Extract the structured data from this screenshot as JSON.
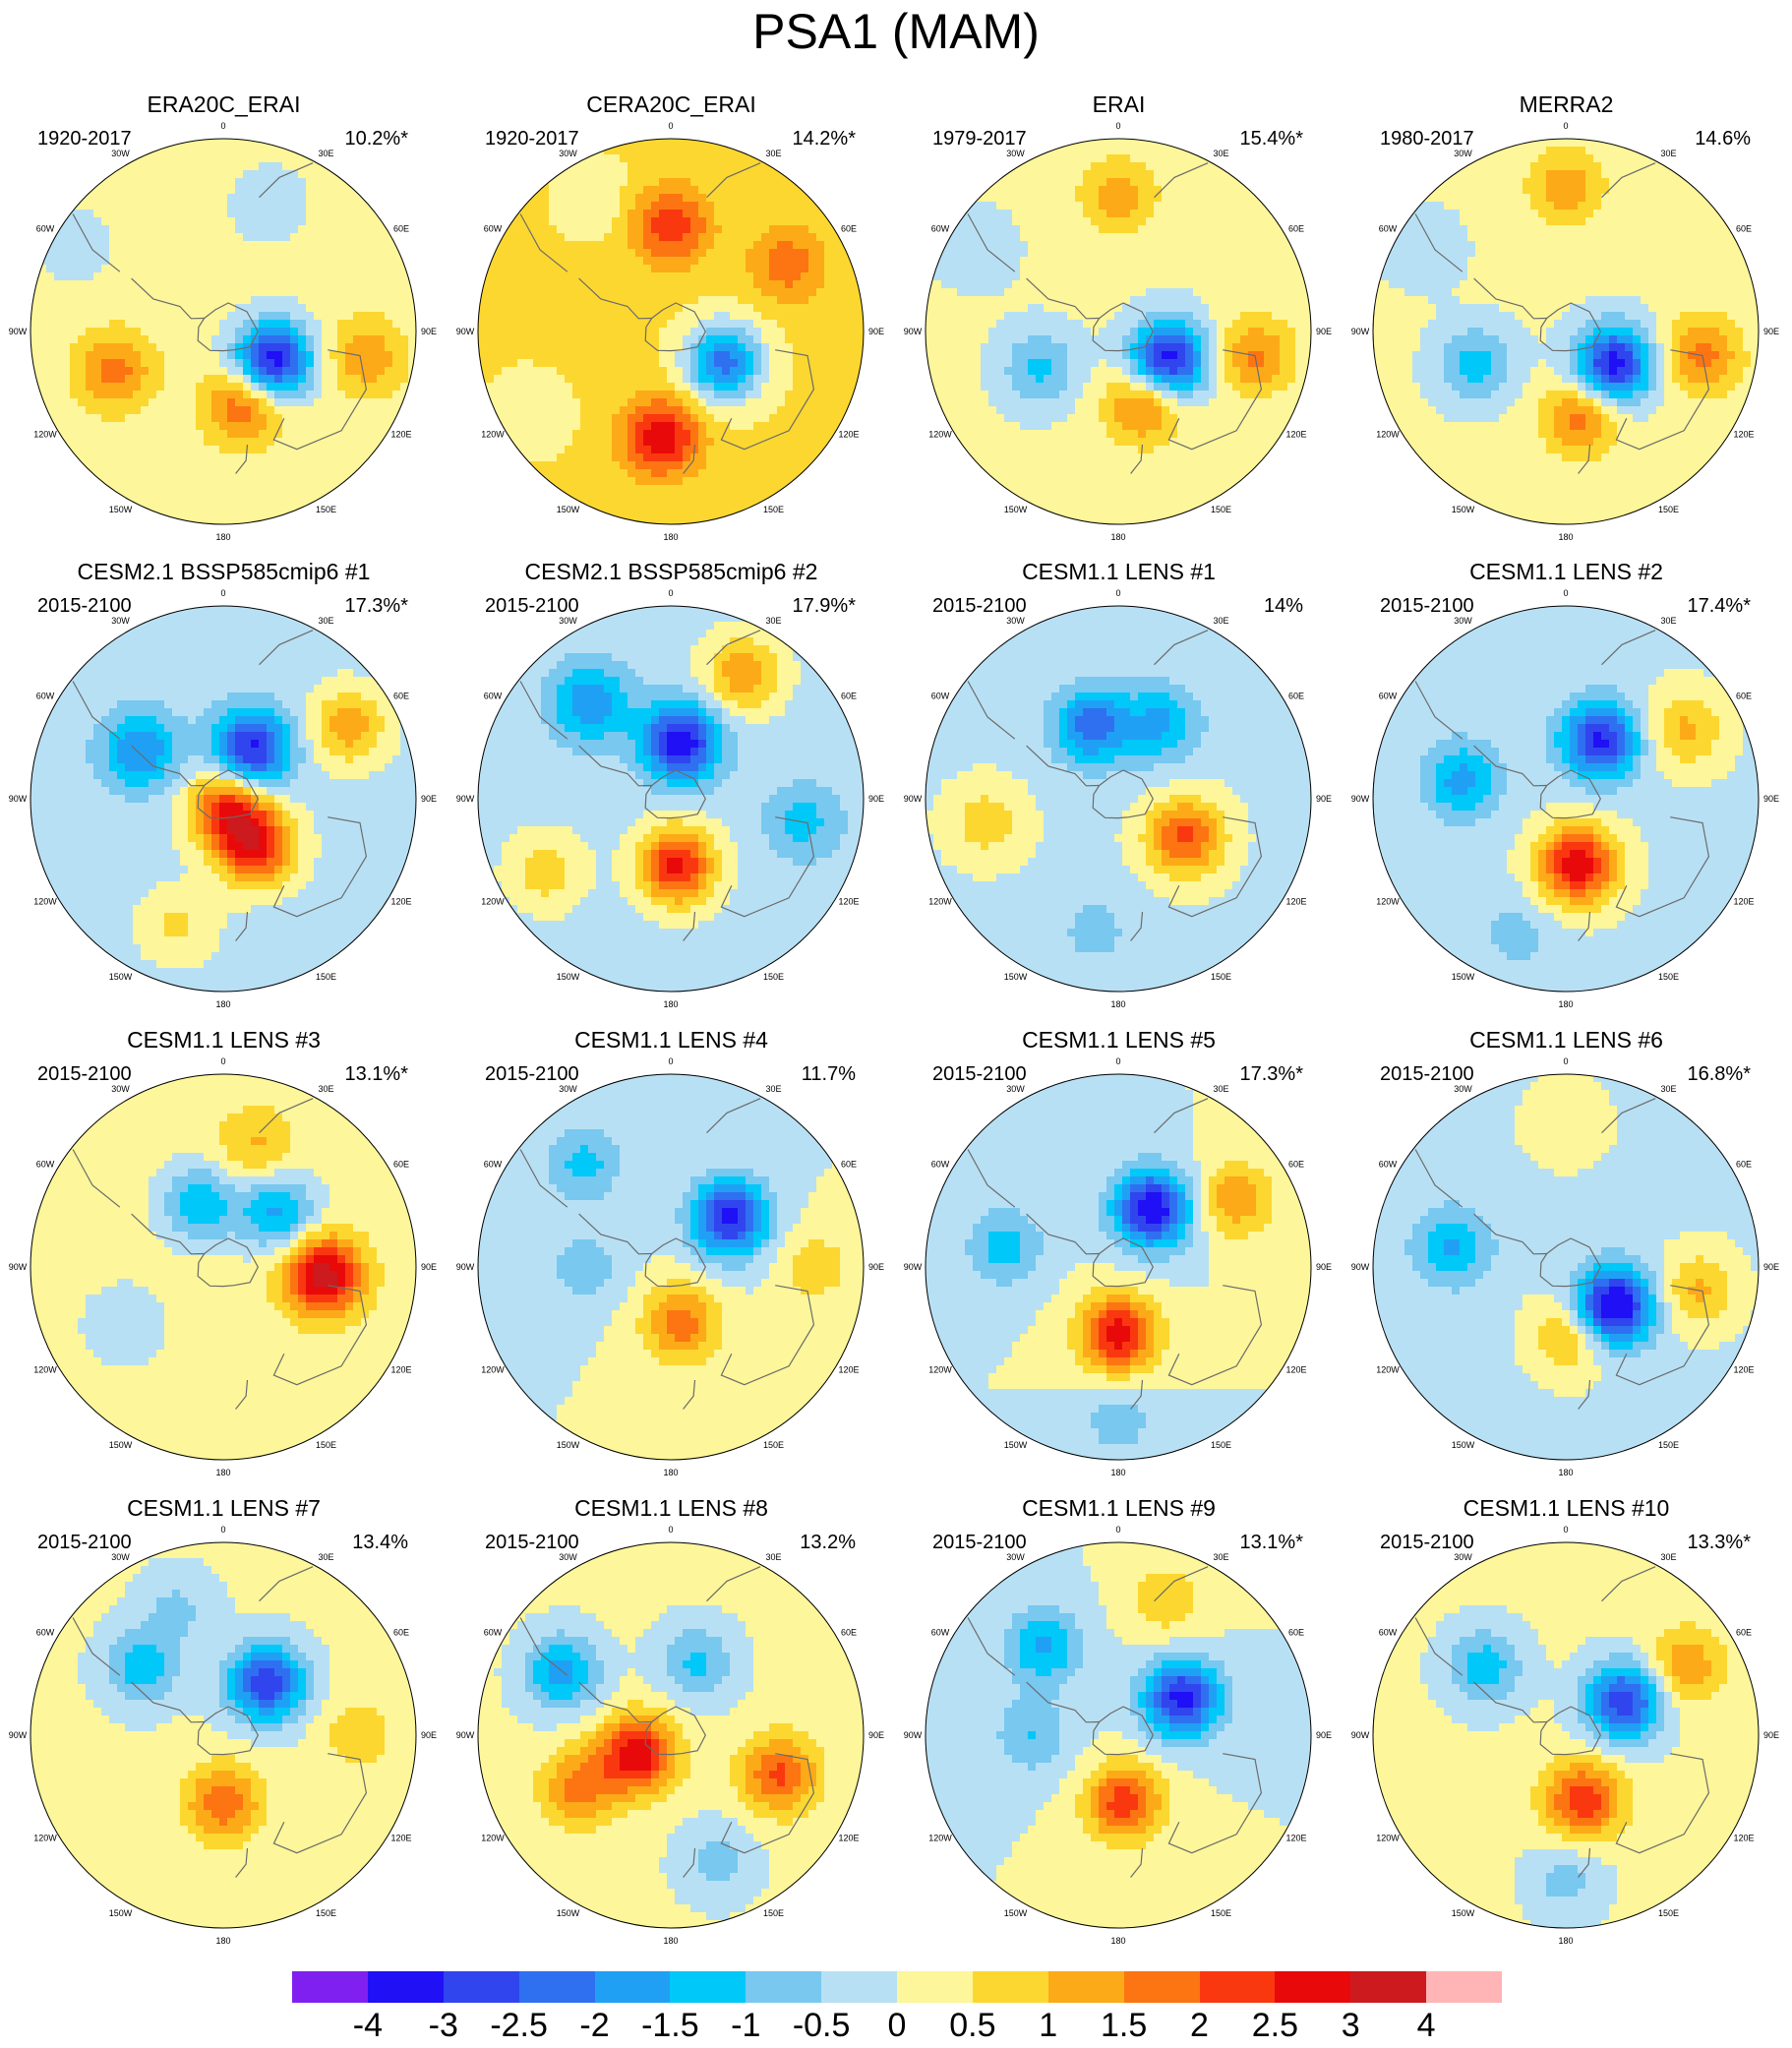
{
  "figure_title": "PSA1 (MAM)",
  "lon_labels": [
    "0",
    "30E",
    "60E",
    "90E",
    "120E",
    "150E",
    "180",
    "150W",
    "120W",
    "90W",
    "60W",
    "30W"
  ],
  "colorbar": {
    "colors": [
      "#8020f0",
      "#1f10f5",
      "#3045ee",
      "#2f70f0",
      "#20a0f5",
      "#00c8f8",
      "#78c8f0",
      "#b8e0f4",
      "#fdf69a",
      "#fcd730",
      "#fdaa18",
      "#fc7512",
      "#fa3810",
      "#e80a0a",
      "#cc1a1e",
      "#ffb5b5"
    ],
    "labels": [
      "-4",
      "-3",
      "-2.5",
      "-2",
      "-1.5",
      "-1",
      "-0.5",
      "0",
      "0.5",
      "1",
      "1.5",
      "2",
      "2.5",
      "3",
      "4"
    ]
  },
  "panels": [
    {
      "title": "ERA20C_ERAI",
      "period": "1920-2017",
      "variance": "10.2%*"
    },
    {
      "title": "CERA20C_ERAI",
      "period": "1920-2017",
      "variance": "14.2%*"
    },
    {
      "title": "ERAI",
      "period": "1979-2017",
      "variance": "15.4%*"
    },
    {
      "title": "MERRA2",
      "period": "1980-2017",
      "variance": "14.6%"
    },
    {
      "title": "CESM2.1 BSSP585cmip6 #1",
      "period": "2015-2100",
      "variance": "17.3%*"
    },
    {
      "title": "CESM2.1 BSSP585cmip6 #2",
      "period": "2015-2100",
      "variance": "17.9%*"
    },
    {
      "title": "CESM1.1 LENS #1",
      "period": "2015-2100",
      "variance": "14%"
    },
    {
      "title": "CESM1.1 LENS #2",
      "period": "2015-2100",
      "variance": "17.4%*"
    },
    {
      "title": "CESM1.1 LENS #3",
      "period": "2015-2100",
      "variance": "13.1%*"
    },
    {
      "title": "CESM1.1 LENS #4",
      "period": "2015-2100",
      "variance": "11.7%"
    },
    {
      "title": "CESM1.1 LENS #5",
      "period": "2015-2100",
      "variance": "17.3%*"
    },
    {
      "title": "CESM1.1 LENS #6",
      "period": "2015-2100",
      "variance": "16.8%*"
    },
    {
      "title": "CESM1.1 LENS #7",
      "period": "2015-2100",
      "variance": "13.4%"
    },
    {
      "title": "CESM1.1 LENS #8",
      "period": "2015-2100",
      "variance": "13.2%"
    },
    {
      "title": "CESM1.1 LENS #9",
      "period": "2015-2100",
      "variance": "13.1%*"
    },
    {
      "title": "CESM1.1 LENS #10",
      "period": "2015-2100",
      "variance": "13.3%*"
    }
  ],
  "chart_data": {
    "type": "heatmap",
    "title": "PSA1 (MAM)",
    "projection": "south polar stereographic",
    "colorbar_levels": [
      -4,
      -3,
      -2.5,
      -2,
      -1.5,
      -1,
      -0.5,
      0,
      0.5,
      1,
      1.5,
      2,
      2.5,
      3,
      4
    ],
    "fields": [
      {
        "background": 0.2,
        "blobs": [
          {
            "lon": 120,
            "r": 0.3,
            "v": -3.5
          },
          {
            "lon": 165,
            "r": 0.4,
            "v": 1.8
          },
          {
            "lon": 250,
            "r": 0.6,
            "v": 1.5
          },
          {
            "lon": 100,
            "r": 0.75,
            "v": 1.2
          },
          {
            "lon": 300,
            "r": 0.9,
            "v": -0.5
          },
          {
            "lon": 20,
            "r": 0.7,
            "v": -0.6
          }
        ]
      },
      {
        "background": 0.6,
        "blobs": [
          {
            "lon": 120,
            "r": 0.32,
            "v": -2.8
          },
          {
            "lon": 185,
            "r": 0.55,
            "v": 2.3
          },
          {
            "lon": 0,
            "r": 0.55,
            "v": 1.8
          },
          {
            "lon": 60,
            "r": 0.7,
            "v": 1.2
          },
          {
            "lon": 240,
            "r": 0.85,
            "v": -0.6
          },
          {
            "lon": 330,
            "r": 0.8,
            "v": -0.5
          }
        ]
      },
      {
        "background": 0.1,
        "blobs": [
          {
            "lon": 120,
            "r": 0.3,
            "v": -3.5
          },
          {
            "lon": 160,
            "r": 0.4,
            "v": 1.8
          },
          {
            "lon": 245,
            "r": 0.45,
            "v": -1.2
          },
          {
            "lon": 100,
            "r": 0.72,
            "v": 1.5
          },
          {
            "lon": 0,
            "r": 0.7,
            "v": 1.2
          },
          {
            "lon": 300,
            "r": 0.85,
            "v": -0.5
          }
        ]
      },
      {
        "background": 0.1,
        "blobs": [
          {
            "lon": 125,
            "r": 0.3,
            "v": -3.4
          },
          {
            "lon": 170,
            "r": 0.45,
            "v": 1.7
          },
          {
            "lon": 250,
            "r": 0.5,
            "v": -1.3
          },
          {
            "lon": 100,
            "r": 0.72,
            "v": 1.6
          },
          {
            "lon": 0,
            "r": 0.75,
            "v": 1.2
          },
          {
            "lon": 300,
            "r": 0.85,
            "v": -0.5
          }
        ]
      },
      {
        "background": -0.2,
        "blobs": [
          {
            "lon": 145,
            "r": 0.3,
            "v": 2.8
          },
          {
            "lon": 160,
            "r": 0.05,
            "v": 2.5
          },
          {
            "lon": 30,
            "r": 0.3,
            "v": -3.0
          },
          {
            "lon": 300,
            "r": 0.5,
            "v": -1.8
          },
          {
            "lon": 60,
            "r": 0.75,
            "v": 1.5
          },
          {
            "lon": 200,
            "r": 0.7,
            "v": 0.8
          }
        ]
      },
      {
        "background": -0.2,
        "blobs": [
          {
            "lon": 175,
            "r": 0.35,
            "v": 2.8
          },
          {
            "lon": 10,
            "r": 0.3,
            "v": -3.2
          },
          {
            "lon": 320,
            "r": 0.65,
            "v": -1.8
          },
          {
            "lon": 100,
            "r": 0.7,
            "v": -1.0
          },
          {
            "lon": 30,
            "r": 0.75,
            "v": 1.6
          },
          {
            "lon": 240,
            "r": 0.75,
            "v": 1.0
          }
        ]
      },
      {
        "background": -0.1,
        "blobs": [
          {
            "lon": 120,
            "r": 0.4,
            "v": 2.2
          },
          {
            "lon": 340,
            "r": 0.4,
            "v": -2.2
          },
          {
            "lon": 30,
            "r": 0.45,
            "v": -1.5
          },
          {
            "lon": 260,
            "r": 0.7,
            "v": 0.9
          },
          {
            "lon": 190,
            "r": 0.7,
            "v": -0.6
          }
        ]
      },
      {
        "background": -0.1,
        "blobs": [
          {
            "lon": 170,
            "r": 0.35,
            "v": 3.0
          },
          {
            "lon": 30,
            "r": 0.35,
            "v": -3.0
          },
          {
            "lon": 280,
            "r": 0.55,
            "v": -1.6
          },
          {
            "lon": 60,
            "r": 0.72,
            "v": 1.2
          },
          {
            "lon": 200,
            "r": 0.75,
            "v": -0.6
          }
        ]
      },
      {
        "background": 0.2,
        "blobs": [
          {
            "lon": 95,
            "r": 0.52,
            "v": 3.2
          },
          {
            "lon": 45,
            "r": 0.4,
            "v": -1.8
          },
          {
            "lon": 340,
            "r": 0.35,
            "v": -1.6
          },
          {
            "lon": 240,
            "r": 0.6,
            "v": -0.7
          },
          {
            "lon": 15,
            "r": 0.65,
            "v": 0.9
          }
        ]
      },
      {
        "background": 0.0,
        "blobs": [
          {
            "lon": 170,
            "r": 0.3,
            "v": 1.8
          },
          {
            "lon": 50,
            "r": 0.4,
            "v": -3.2
          },
          {
            "lon": 320,
            "r": 0.7,
            "v": -1.2
          },
          {
            "lon": 270,
            "r": 0.45,
            "v": -0.8
          },
          {
            "lon": 90,
            "r": 0.75,
            "v": 0.8
          }
        ]
      },
      {
        "background": 0.0,
        "blobs": [
          {
            "lon": 180,
            "r": 0.35,
            "v": 2.8
          },
          {
            "lon": 30,
            "r": 0.35,
            "v": -3.5
          },
          {
            "lon": 280,
            "r": 0.6,
            "v": -1.3
          },
          {
            "lon": 60,
            "r": 0.7,
            "v": 1.4
          },
          {
            "lon": 180,
            "r": 0.8,
            "v": -0.8
          }
        ]
      },
      {
        "background": -0.1,
        "blobs": [
          {
            "lon": 130,
            "r": 0.32,
            "v": -3.8
          },
          {
            "lon": 175,
            "r": 0.35,
            "v": 1.3
          },
          {
            "lon": 280,
            "r": 0.6,
            "v": -1.5
          },
          {
            "lon": 100,
            "r": 0.7,
            "v": 1.2
          },
          {
            "lon": 0,
            "r": 0.75,
            "v": 0.6
          }
        ]
      },
      {
        "background": 0.1,
        "blobs": [
          {
            "lon": 180,
            "r": 0.35,
            "v": 1.8
          },
          {
            "lon": 40,
            "r": 0.35,
            "v": -3.0
          },
          {
            "lon": 310,
            "r": 0.55,
            "v": -1.4
          },
          {
            "lon": 90,
            "r": 0.7,
            "v": 0.7
          },
          {
            "lon": 340,
            "r": 0.7,
            "v": -0.7
          }
        ]
      },
      {
        "background": 0.1,
        "blobs": [
          {
            "lon": 240,
            "r": 0.2,
            "v": 2.8
          },
          {
            "lon": 110,
            "r": 0.6,
            "v": 2.0
          },
          {
            "lon": 240,
            "r": 0.55,
            "v": 1.6
          },
          {
            "lon": 300,
            "r": 0.65,
            "v": -1.8
          },
          {
            "lon": 20,
            "r": 0.4,
            "v": -1.2
          },
          {
            "lon": 160,
            "r": 0.7,
            "v": -0.8
          }
        ]
      },
      {
        "background": 0.0,
        "blobs": [
          {
            "lon": 175,
            "r": 0.35,
            "v": 2.3
          },
          {
            "lon": 60,
            "r": 0.38,
            "v": -3.2
          },
          {
            "lon": 320,
            "r": 0.6,
            "v": -1.6
          },
          {
            "lon": 270,
            "r": 0.45,
            "v": -1.0
          },
          {
            "lon": 20,
            "r": 0.75,
            "v": 0.9
          }
        ]
      },
      {
        "background": 0.1,
        "blobs": [
          {
            "lon": 165,
            "r": 0.35,
            "v": 2.3
          },
          {
            "lon": 60,
            "r": 0.35,
            "v": -3.0
          },
          {
            "lon": 310,
            "r": 0.55,
            "v": -1.4
          },
          {
            "lon": 180,
            "r": 0.75,
            "v": -0.8
          },
          {
            "lon": 60,
            "r": 0.72,
            "v": 1.3
          }
        ]
      }
    ]
  }
}
